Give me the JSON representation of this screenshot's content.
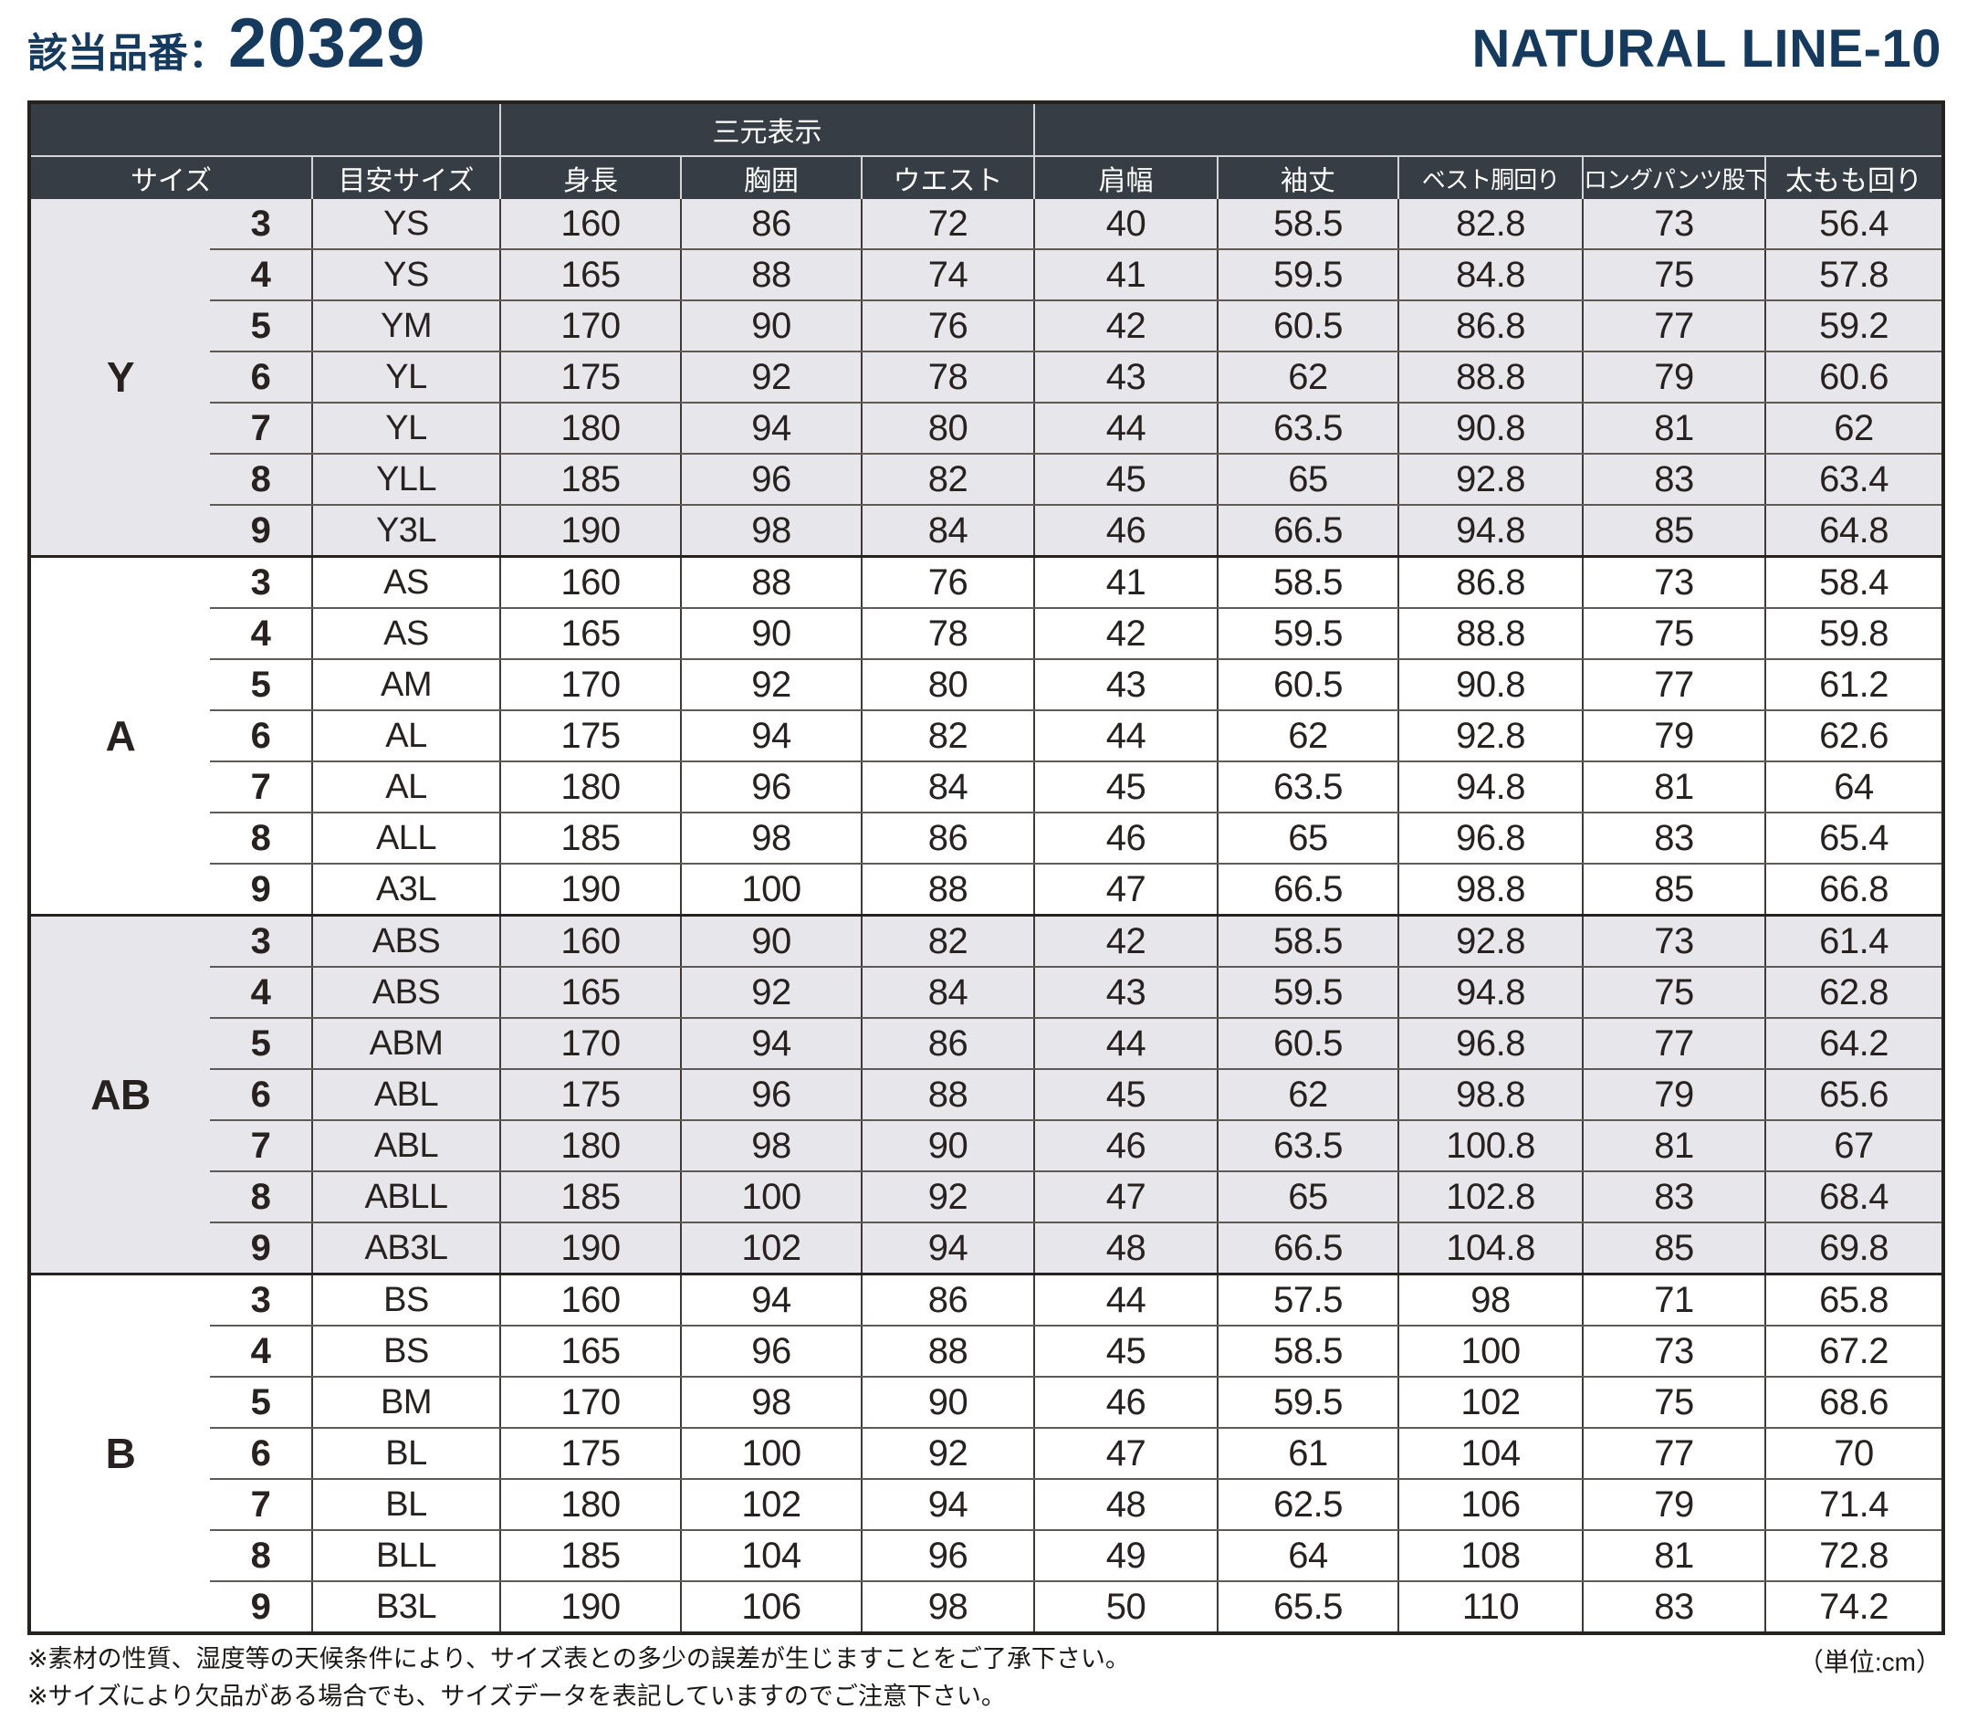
{
  "header": {
    "product_label": "該当品番：",
    "product_number": "20329",
    "brand": "NATURAL LINE-10"
  },
  "table": {
    "span_header": "三元表示",
    "columns": [
      "サイズ",
      "目安サイズ",
      "身長",
      "胸囲",
      "ウエスト",
      "肩幅",
      "袖丈",
      "ベスト胴回り",
      "ロングパンツ股下",
      "太もも回り"
    ],
    "groups": [
      {
        "name": "Y",
        "rows": [
          [
            "3",
            "YS",
            "160",
            "86",
            "72",
            "40",
            "58.5",
            "82.8",
            "73",
            "56.4"
          ],
          [
            "4",
            "YS",
            "165",
            "88",
            "74",
            "41",
            "59.5",
            "84.8",
            "75",
            "57.8"
          ],
          [
            "5",
            "YM",
            "170",
            "90",
            "76",
            "42",
            "60.5",
            "86.8",
            "77",
            "59.2"
          ],
          [
            "6",
            "YL",
            "175",
            "92",
            "78",
            "43",
            "62",
            "88.8",
            "79",
            "60.6"
          ],
          [
            "7",
            "YL",
            "180",
            "94",
            "80",
            "44",
            "63.5",
            "90.8",
            "81",
            "62"
          ],
          [
            "8",
            "YLL",
            "185",
            "96",
            "82",
            "45",
            "65",
            "92.8",
            "83",
            "63.4"
          ],
          [
            "9",
            "Y3L",
            "190",
            "98",
            "84",
            "46",
            "66.5",
            "94.8",
            "85",
            "64.8"
          ]
        ]
      },
      {
        "name": "A",
        "rows": [
          [
            "3",
            "AS",
            "160",
            "88",
            "76",
            "41",
            "58.5",
            "86.8",
            "73",
            "58.4"
          ],
          [
            "4",
            "AS",
            "165",
            "90",
            "78",
            "42",
            "59.5",
            "88.8",
            "75",
            "59.8"
          ],
          [
            "5",
            "AM",
            "170",
            "92",
            "80",
            "43",
            "60.5",
            "90.8",
            "77",
            "61.2"
          ],
          [
            "6",
            "AL",
            "175",
            "94",
            "82",
            "44",
            "62",
            "92.8",
            "79",
            "62.6"
          ],
          [
            "7",
            "AL",
            "180",
            "96",
            "84",
            "45",
            "63.5",
            "94.8",
            "81",
            "64"
          ],
          [
            "8",
            "ALL",
            "185",
            "98",
            "86",
            "46",
            "65",
            "96.8",
            "83",
            "65.4"
          ],
          [
            "9",
            "A3L",
            "190",
            "100",
            "88",
            "47",
            "66.5",
            "98.8",
            "85",
            "66.8"
          ]
        ]
      },
      {
        "name": "AB",
        "rows": [
          [
            "3",
            "ABS",
            "160",
            "90",
            "82",
            "42",
            "58.5",
            "92.8",
            "73",
            "61.4"
          ],
          [
            "4",
            "ABS",
            "165",
            "92",
            "84",
            "43",
            "59.5",
            "94.8",
            "75",
            "62.8"
          ],
          [
            "5",
            "ABM",
            "170",
            "94",
            "86",
            "44",
            "60.5",
            "96.8",
            "77",
            "64.2"
          ],
          [
            "6",
            "ABL",
            "175",
            "96",
            "88",
            "45",
            "62",
            "98.8",
            "79",
            "65.6"
          ],
          [
            "7",
            "ABL",
            "180",
            "98",
            "90",
            "46",
            "63.5",
            "100.8",
            "81",
            "67"
          ],
          [
            "8",
            "ABLL",
            "185",
            "100",
            "92",
            "47",
            "65",
            "102.8",
            "83",
            "68.4"
          ],
          [
            "9",
            "AB3L",
            "190",
            "102",
            "94",
            "48",
            "66.5",
            "104.8",
            "85",
            "69.8"
          ]
        ]
      },
      {
        "name": "B",
        "rows": [
          [
            "3",
            "BS",
            "160",
            "94",
            "86",
            "44",
            "57.5",
            "98",
            "71",
            "65.8"
          ],
          [
            "4",
            "BS",
            "165",
            "96",
            "88",
            "45",
            "58.5",
            "100",
            "73",
            "67.2"
          ],
          [
            "5",
            "BM",
            "170",
            "98",
            "90",
            "46",
            "59.5",
            "102",
            "75",
            "68.6"
          ],
          [
            "6",
            "BL",
            "175",
            "100",
            "92",
            "47",
            "61",
            "104",
            "77",
            "70"
          ],
          [
            "7",
            "BL",
            "180",
            "102",
            "94",
            "48",
            "62.5",
            "106",
            "79",
            "71.4"
          ],
          [
            "8",
            "BLL",
            "185",
            "104",
            "96",
            "49",
            "64",
            "108",
            "81",
            "72.8"
          ],
          [
            "9",
            "B3L",
            "190",
            "106",
            "98",
            "50",
            "65.5",
            "110",
            "83",
            "74.2"
          ]
        ]
      }
    ]
  },
  "footer": {
    "notes": [
      "※素材の性質、湿度等の天候条件により、サイズ表との多少の誤差が生じますことをご了承下さい。",
      "※サイズにより欠品がある場合でも、サイズデータを表記していますのでご注意下さい。"
    ],
    "unit": "（単位:cm）"
  },
  "colors": {
    "title_navy": "#163a5e",
    "header_background": "#373d44",
    "band_row_background": "#e7e6eb",
    "table_border": "#262220"
  }
}
